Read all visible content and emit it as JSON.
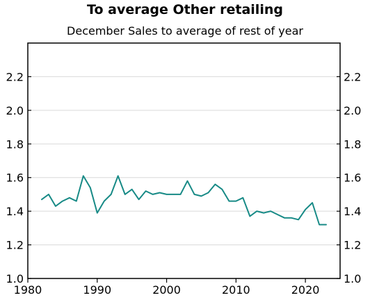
{
  "chart_data": {
    "type": "line",
    "title": "To average Other retailing",
    "subtitle": "December Sales to average of rest of year",
    "xlabel": "",
    "ylabel": "",
    "xlim": [
      1980,
      2025
    ],
    "ylim": [
      1.0,
      2.4
    ],
    "x_ticks": [
      1980,
      1990,
      2000,
      2010,
      2020
    ],
    "y_ticks": [
      1.0,
      1.2,
      1.4,
      1.6,
      1.8,
      2.0,
      2.2
    ],
    "y_tick_labels": [
      "1.0",
      "1.2",
      "1.4",
      "1.6",
      "1.8",
      "2.0",
      "2.2"
    ],
    "grid": true,
    "legend": "none",
    "series_color": "#178a86",
    "x": [
      1982,
      1983,
      1984,
      1985,
      1986,
      1987,
      1988,
      1989,
      1990,
      1991,
      1992,
      1993,
      1994,
      1995,
      1996,
      1997,
      1998,
      1999,
      2000,
      2001,
      2002,
      2003,
      2004,
      2005,
      2006,
      2007,
      2008,
      2009,
      2010,
      2011,
      2012,
      2013,
      2014,
      2015,
      2016,
      2017,
      2018,
      2019,
      2020,
      2021,
      2022,
      2023
    ],
    "series": [
      {
        "values": [
          1.47,
          1.5,
          1.43,
          1.46,
          1.48,
          1.46,
          1.61,
          1.54,
          1.39,
          1.46,
          1.5,
          1.61,
          1.5,
          1.53,
          1.47,
          1.52,
          1.5,
          1.51,
          1.5,
          1.5,
          1.5,
          1.58,
          1.5,
          1.49,
          1.51,
          1.56,
          1.53,
          1.46,
          1.46,
          1.48,
          1.37,
          1.4,
          1.39,
          1.4,
          1.38,
          1.36,
          1.36,
          1.35,
          1.41,
          1.45,
          1.32,
          1.32
        ]
      }
    ]
  }
}
